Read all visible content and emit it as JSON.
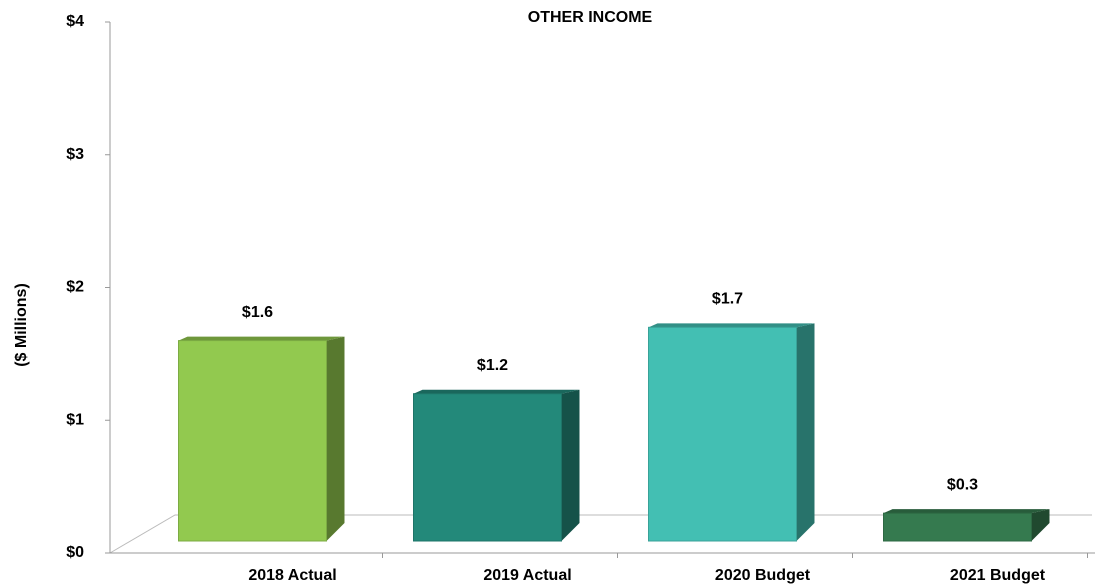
{
  "chart_data": {
    "type": "bar",
    "title": "OTHER INCOME",
    "y_label": "($ Millions)",
    "categories": [
      "2018 Actual",
      "2019 Actual",
      "2020 Budget",
      "2021 Budget"
    ],
    "values": [
      1.6,
      1.2,
      1.7,
      0.3
    ],
    "value_labels": [
      "$1.6",
      "$1.2",
      "$1.7",
      "$0.3"
    ],
    "colors": [
      "#92c94f",
      "#23897a",
      "#43bfb3",
      "#357a4f"
    ],
    "ylim": [
      0,
      4
    ],
    "yticks": [
      {
        "value": 0,
        "label": "$0"
      },
      {
        "value": 1,
        "label": "$1"
      },
      {
        "value": 2,
        "label": "$2"
      },
      {
        "value": 3,
        "label": "$3"
      },
      {
        "value": 4,
        "label": "$4"
      }
    ]
  }
}
